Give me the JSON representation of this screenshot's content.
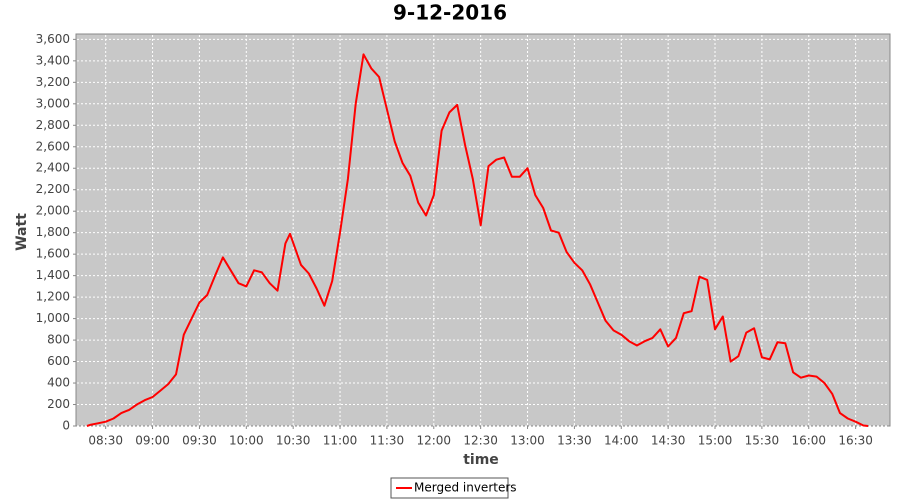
{
  "chart_data": {
    "type": "line",
    "title": "9-12-2016",
    "x_label": "time",
    "y_label": "Watt",
    "x": [
      "08:18",
      "08:20",
      "08:25",
      "08:30",
      "08:35",
      "08:40",
      "08:45",
      "08:50",
      "08:55",
      "09:00",
      "09:05",
      "09:10",
      "09:15",
      "09:20",
      "09:25",
      "09:30",
      "09:35",
      "09:40",
      "09:45",
      "09:50",
      "09:55",
      "10:00",
      "10:05",
      "10:10",
      "10:15",
      "10:20",
      "10:25",
      "10:28",
      "10:35",
      "10:40",
      "10:45",
      "10:50",
      "10:55",
      "11:00",
      "11:05",
      "11:10",
      "11:15",
      "11:20",
      "11:25",
      "11:30",
      "11:35",
      "11:40",
      "11:45",
      "11:50",
      "11:55",
      "12:00",
      "12:05",
      "12:10",
      "12:15",
      "12:20",
      "12:25",
      "12:30",
      "12:35",
      "12:40",
      "12:45",
      "12:50",
      "12:55",
      "13:00",
      "13:05",
      "13:10",
      "13:15",
      "13:20",
      "13:25",
      "13:30",
      "13:35",
      "13:40",
      "13:45",
      "13:50",
      "13:55",
      "14:00",
      "14:05",
      "14:10",
      "14:15",
      "14:20",
      "14:25",
      "14:30",
      "14:35",
      "14:40",
      "14:45",
      "14:50",
      "14:55",
      "15:00",
      "15:05",
      "15:10",
      "15:15",
      "15:20",
      "15:25",
      "15:30",
      "15:35",
      "15:40",
      "15:45",
      "15:50",
      "15:55",
      "16:00",
      "16:05",
      "16:10",
      "16:15",
      "16:20",
      "16:25",
      "16:30",
      "16:35",
      "16:38"
    ],
    "series": [
      {
        "name": "Merged inverters",
        "color": "#ff0000",
        "values": [
          0,
          10,
          25,
          40,
          70,
          120,
          150,
          200,
          240,
          270,
          330,
          390,
          480,
          850,
          1000,
          1150,
          1220,
          1400,
          1570,
          1450,
          1330,
          1300,
          1450,
          1430,
          1330,
          1260,
          1700,
          1790,
          1500,
          1420,
          1280,
          1120,
          1350,
          1800,
          2300,
          3000,
          3460,
          3330,
          3250,
          2950,
          2650,
          2450,
          2330,
          2080,
          1960,
          2150,
          2750,
          2920,
          2990,
          2620,
          2300,
          1870,
          2420,
          2480,
          2500,
          2320,
          2320,
          2400,
          2150,
          2030,
          1820,
          1800,
          1620,
          1520,
          1450,
          1320,
          1150,
          980,
          890,
          850,
          790,
          750,
          790,
          820,
          900,
          740,
          820,
          1050,
          1070,
          1390,
          1360,
          900,
          1020,
          600,
          650,
          870,
          910,
          640,
          620,
          780,
          770,
          500,
          450,
          470,
          460,
          400,
          300,
          120,
          70,
          40,
          5,
          0
        ]
      }
    ],
    "xlim": [
      "08:11",
      "16:52"
    ],
    "xticks": [
      "08:30",
      "09:00",
      "09:30",
      "10:00",
      "10:30",
      "11:00",
      "11:30",
      "12:00",
      "12:30",
      "13:00",
      "13:30",
      "14:00",
      "14:30",
      "15:00",
      "15:30",
      "16:00",
      "16:30"
    ],
    "ylim": [
      0,
      3650
    ],
    "yticks": [
      0,
      200,
      400,
      600,
      800,
      {
        "value": 1000,
        "label": "1,000"
      },
      {
        "value": 1200,
        "label": "1,200"
      },
      {
        "value": 1400,
        "label": "1,400"
      },
      {
        "value": 1600,
        "label": "1,600"
      },
      {
        "value": 1800,
        "label": "1,800"
      },
      {
        "value": 2000,
        "label": "2,000"
      },
      {
        "value": 2200,
        "label": "2,200"
      },
      {
        "value": 2400,
        "label": "2,400"
      },
      {
        "value": 2600,
        "label": "2,600"
      },
      {
        "value": 2800,
        "label": "2,800"
      },
      {
        "value": 3000,
        "label": "3,000"
      },
      {
        "value": 3200,
        "label": "3,200"
      },
      {
        "value": 3400,
        "label": "3,400"
      },
      {
        "value": 3600,
        "label": "3,600"
      }
    ],
    "grid": true,
    "legend": "bottom"
  }
}
